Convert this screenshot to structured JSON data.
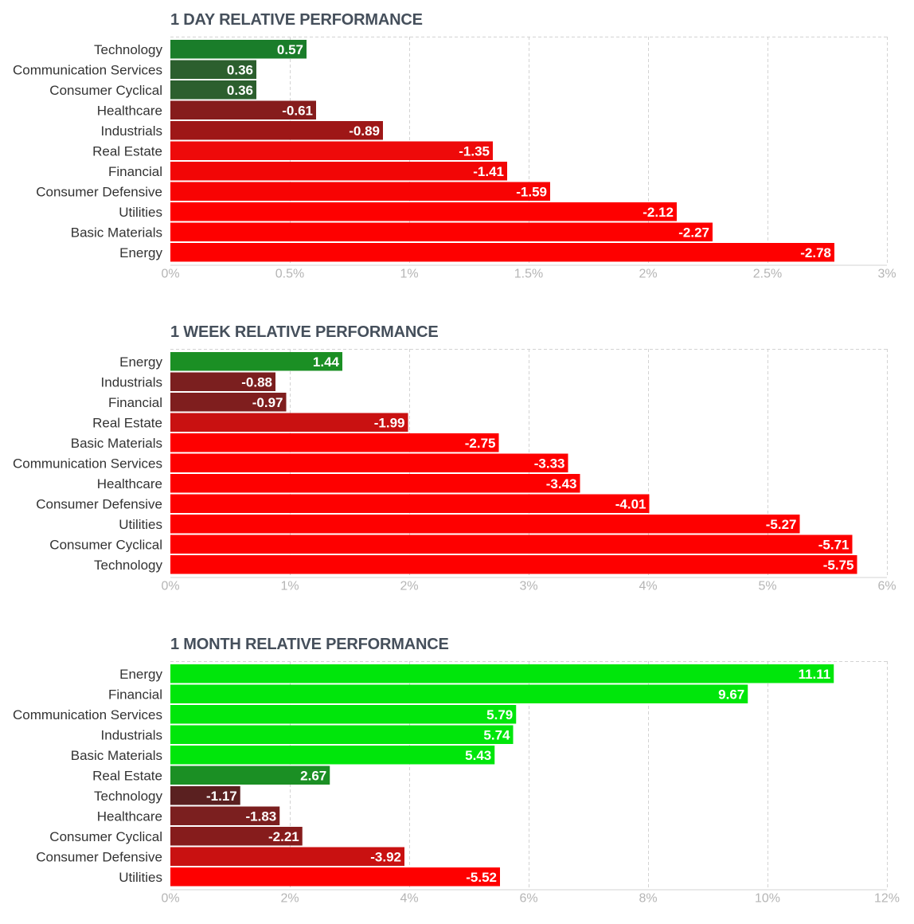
{
  "chart_data": [
    {
      "type": "bar",
      "orientation": "horizontal",
      "title": "1 DAY RELATIVE PERFORMANCE",
      "categories": [
        "Technology",
        "Communication Services",
        "Consumer Cyclical",
        "Healthcare",
        "Industrials",
        "Real Estate",
        "Financial",
        "Consumer Defensive",
        "Utilities",
        "Basic Materials",
        "Energy"
      ],
      "values": [
        0.57,
        0.36,
        0.36,
        -0.61,
        -0.89,
        -1.35,
        -1.41,
        -1.59,
        -2.12,
        -2.27,
        -2.78
      ],
      "value_labels": [
        "0.57",
        "0.36",
        "0.36",
        "-0.61",
        "-0.89",
        "-1.35",
        "-1.41",
        "-1.59",
        "-2.12",
        "-2.27",
        "-2.78"
      ],
      "bar_colors": [
        "#1a7d2a",
        "#2c5f2e",
        "#2c5f2e",
        "#861c1c",
        "#9e1717",
        "#ee0a0a",
        "#f20606",
        "#f80303",
        "#fe0000",
        "#fe0000",
        "#fe0000"
      ],
      "xlim": [
        0,
        3
      ],
      "xticks": [
        0,
        0.5,
        1,
        1.5,
        2,
        2.5,
        3
      ],
      "xtick_labels": [
        "0%",
        "0.5%",
        "1%",
        "1.5%",
        "2%",
        "2.5%",
        "3%"
      ],
      "grid": true,
      "xlabel": "",
      "ylabel": ""
    },
    {
      "type": "bar",
      "orientation": "horizontal",
      "title": "1 WEEK RELATIVE PERFORMANCE",
      "categories": [
        "Energy",
        "Industrials",
        "Financial",
        "Real Estate",
        "Basic Materials",
        "Communication Services",
        "Healthcare",
        "Consumer Defensive",
        "Utilities",
        "Consumer Cyclical",
        "Technology"
      ],
      "values": [
        1.44,
        -0.88,
        -0.97,
        -1.99,
        -2.75,
        -3.33,
        -3.43,
        -4.01,
        -5.27,
        -5.71,
        -5.75
      ],
      "value_labels": [
        "1.44",
        "-0.88",
        "-0.97",
        "-1.99",
        "-2.75",
        "-3.33",
        "-3.43",
        "-4.01",
        "-5.27",
        "-5.71",
        "-5.75"
      ],
      "bar_colors": [
        "#1b8f24",
        "#7b1f1f",
        "#7f1e1e",
        "#c91111",
        "#fe0000",
        "#fe0000",
        "#fe0000",
        "#fe0000",
        "#fe0000",
        "#fe0000",
        "#fe0000"
      ],
      "xlim": [
        0,
        6
      ],
      "xticks": [
        0,
        1,
        2,
        3,
        4,
        5,
        6
      ],
      "xtick_labels": [
        "0%",
        "1%",
        "2%",
        "3%",
        "4%",
        "5%",
        "6%"
      ],
      "grid": true,
      "xlabel": "",
      "ylabel": ""
    },
    {
      "type": "bar",
      "orientation": "horizontal",
      "title": "1 MONTH RELATIVE PERFORMANCE",
      "categories": [
        "Energy",
        "Financial",
        "Communication Services",
        "Industrials",
        "Basic Materials",
        "Real Estate",
        "Technology",
        "Healthcare",
        "Consumer Cyclical",
        "Consumer Defensive",
        "Utilities"
      ],
      "values": [
        11.11,
        9.67,
        5.79,
        5.74,
        5.43,
        2.67,
        -1.17,
        -1.83,
        -2.21,
        -3.92,
        -5.52
      ],
      "value_labels": [
        "11.11",
        "9.67",
        "5.79",
        "5.74",
        "5.43",
        "2.67",
        "-1.17",
        "-1.83",
        "-2.21",
        "-3.92",
        "-5.52"
      ],
      "bar_colors": [
        "#00e60b",
        "#00e60b",
        "#00e60b",
        "#00e60b",
        "#00e60b",
        "#1b8f24",
        "#5a2020",
        "#7b1f1f",
        "#861c1c",
        "#c91111",
        "#fe0000"
      ],
      "xlim": [
        0,
        12
      ],
      "xticks": [
        0,
        2,
        4,
        6,
        8,
        10,
        12
      ],
      "xtick_labels": [
        "0%",
        "2%",
        "4%",
        "6%",
        "8%",
        "10%",
        "12%"
      ],
      "grid": true,
      "xlabel": "",
      "ylabel": ""
    }
  ]
}
